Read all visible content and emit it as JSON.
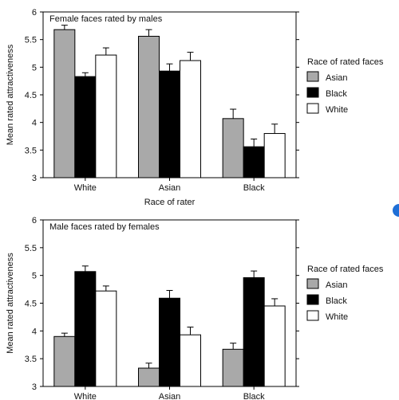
{
  "accent_dot_color": "#1f6fd6",
  "chart_data": [
    {
      "type": "bar",
      "title": "Female faces rated by males",
      "xlabel": "Race of rater",
      "ylabel": "Mean rated attractiveness",
      "categories": [
        "White",
        "Asian",
        "Black"
      ],
      "ylim": [
        3,
        6
      ],
      "yticks": [
        "3",
        "3.5",
        "4",
        "4.5",
        "5",
        "5.5",
        "6"
      ],
      "legend_title": "Race of rated faces",
      "legend_position": "right",
      "series": [
        {
          "name": "Asian",
          "color": "#a9a9a9",
          "values": [
            5.68,
            5.56,
            4.07
          ],
          "errors": [
            0.08,
            0.12,
            0.17
          ]
        },
        {
          "name": "Black",
          "color": "#000000",
          "values": [
            4.83,
            4.93,
            3.56
          ],
          "errors": [
            0.07,
            0.13,
            0.14
          ]
        },
        {
          "name": "White",
          "color": "#ffffff",
          "values": [
            5.22,
            5.12,
            3.8
          ],
          "errors": [
            0.13,
            0.15,
            0.17
          ]
        }
      ]
    },
    {
      "type": "bar",
      "title": "Male faces rated by females",
      "xlabel": "",
      "ylabel": "Mean rated attractiveness",
      "categories": [
        "White",
        "Asian",
        "Black"
      ],
      "ylim": [
        3,
        6
      ],
      "yticks": [
        "3",
        "3.5",
        "4",
        "4.5",
        "5",
        "5.5",
        "6"
      ],
      "legend_title": "Race of rated faces",
      "legend_position": "right",
      "series": [
        {
          "name": "Asian",
          "color": "#a9a9a9",
          "values": [
            3.9,
            3.33,
            3.67
          ],
          "errors": [
            0.06,
            0.09,
            0.11
          ]
        },
        {
          "name": "Black",
          "color": "#000000",
          "values": [
            5.07,
            4.59,
            4.96
          ],
          "errors": [
            0.1,
            0.14,
            0.12
          ]
        },
        {
          "name": "White",
          "color": "#ffffff",
          "values": [
            4.72,
            3.93,
            4.45
          ],
          "errors": [
            0.09,
            0.14,
            0.13
          ]
        }
      ]
    }
  ]
}
